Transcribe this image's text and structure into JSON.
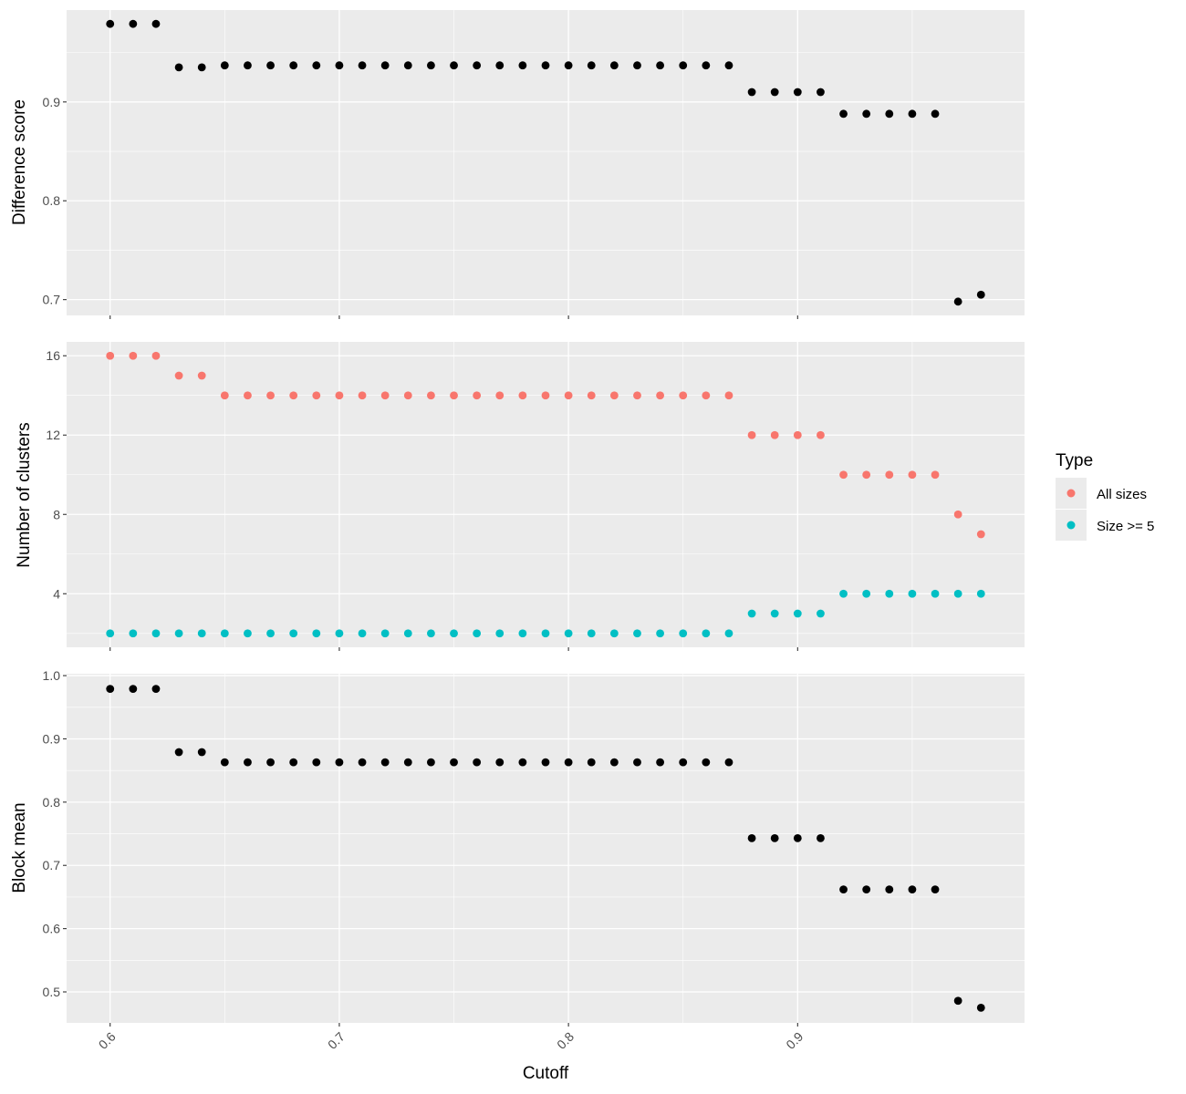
{
  "chart_data": [
    {
      "type": "scatter",
      "panel": "top",
      "xlabel": "",
      "ylabel": "Difference score",
      "xlim": [
        0.581,
        0.999
      ],
      "ylim": [
        0.684,
        0.993
      ],
      "yticks": [
        "0.7",
        "0.8",
        "0.9"
      ],
      "yticks_values": [
        0.7,
        0.8,
        0.9
      ],
      "grid": true,
      "series": [
        {
          "color": "#000000",
          "x": [
            0.6,
            0.61,
            0.62,
            0.63,
            0.64,
            0.65,
            0.66,
            0.67,
            0.68,
            0.69,
            0.7,
            0.71,
            0.72,
            0.73,
            0.74,
            0.75,
            0.76,
            0.77,
            0.78,
            0.79,
            0.8,
            0.81,
            0.82,
            0.83,
            0.84,
            0.85,
            0.86,
            0.87,
            0.88,
            0.89,
            0.9,
            0.91,
            0.92,
            0.93,
            0.94,
            0.95,
            0.96,
            0.97,
            0.98
          ],
          "y": [
            0.979,
            0.979,
            0.979,
            0.935,
            0.935,
            0.937,
            0.937,
            0.937,
            0.937,
            0.937,
            0.937,
            0.937,
            0.937,
            0.937,
            0.937,
            0.937,
            0.937,
            0.937,
            0.937,
            0.937,
            0.937,
            0.937,
            0.937,
            0.937,
            0.937,
            0.937,
            0.937,
            0.937,
            0.91,
            0.91,
            0.91,
            0.91,
            0.888,
            0.888,
            0.888,
            0.888,
            0.888,
            0.698,
            0.705
          ]
        }
      ]
    },
    {
      "type": "scatter",
      "panel": "middle",
      "xlabel": "",
      "ylabel": "Number of clusters",
      "xlim": [
        0.581,
        0.999
      ],
      "ylim": [
        1.3,
        16.7
      ],
      "yticks": [
        "4",
        "8",
        "12",
        "16"
      ],
      "yticks_values": [
        4,
        8,
        12,
        16
      ],
      "grid": true,
      "legend_position": "right",
      "legend_title": "Type",
      "series": [
        {
          "name": "All sizes",
          "color": "#F8766D",
          "x": [
            0.6,
            0.61,
            0.62,
            0.63,
            0.64,
            0.65,
            0.66,
            0.67,
            0.68,
            0.69,
            0.7,
            0.71,
            0.72,
            0.73,
            0.74,
            0.75,
            0.76,
            0.77,
            0.78,
            0.79,
            0.8,
            0.81,
            0.82,
            0.83,
            0.84,
            0.85,
            0.86,
            0.87,
            0.88,
            0.89,
            0.9,
            0.91,
            0.92,
            0.93,
            0.94,
            0.95,
            0.96,
            0.97,
            0.98
          ],
          "y": [
            16,
            16,
            16,
            15,
            15,
            14,
            14,
            14,
            14,
            14,
            14,
            14,
            14,
            14,
            14,
            14,
            14,
            14,
            14,
            14,
            14,
            14,
            14,
            14,
            14,
            14,
            14,
            14,
            12,
            12,
            12,
            12,
            10,
            10,
            10,
            10,
            10,
            8,
            7
          ]
        },
        {
          "name": "Size >= 5",
          "color": "#00BFC4",
          "x": [
            0.6,
            0.61,
            0.62,
            0.63,
            0.64,
            0.65,
            0.66,
            0.67,
            0.68,
            0.69,
            0.7,
            0.71,
            0.72,
            0.73,
            0.74,
            0.75,
            0.76,
            0.77,
            0.78,
            0.79,
            0.8,
            0.81,
            0.82,
            0.83,
            0.84,
            0.85,
            0.86,
            0.87,
            0.88,
            0.89,
            0.9,
            0.91,
            0.92,
            0.93,
            0.94,
            0.95,
            0.96,
            0.97,
            0.98
          ],
          "y": [
            2,
            2,
            2,
            2,
            2,
            2,
            2,
            2,
            2,
            2,
            2,
            2,
            2,
            2,
            2,
            2,
            2,
            2,
            2,
            2,
            2,
            2,
            2,
            2,
            2,
            2,
            2,
            2,
            3,
            3,
            3,
            3,
            4,
            4,
            4,
            4,
            4,
            4,
            4
          ]
        }
      ]
    },
    {
      "type": "scatter",
      "panel": "bottom",
      "xlabel": "Cutoff",
      "ylabel": "Block mean",
      "xlim": [
        0.581,
        0.999
      ],
      "ylim": [
        0.451,
        1.003
      ],
      "xticks": [
        "0.6",
        "0.7",
        "0.8",
        "0.9"
      ],
      "xticks_values": [
        0.6,
        0.7,
        0.8,
        0.9
      ],
      "yticks": [
        "0.5",
        "0.6",
        "0.7",
        "0.8",
        "0.9",
        "1.0"
      ],
      "yticks_values": [
        0.5,
        0.6,
        0.7,
        0.8,
        0.9,
        1.0
      ],
      "grid": true,
      "series": [
        {
          "color": "#000000",
          "x": [
            0.6,
            0.61,
            0.62,
            0.63,
            0.64,
            0.65,
            0.66,
            0.67,
            0.68,
            0.69,
            0.7,
            0.71,
            0.72,
            0.73,
            0.74,
            0.75,
            0.76,
            0.77,
            0.78,
            0.79,
            0.8,
            0.81,
            0.82,
            0.83,
            0.84,
            0.85,
            0.86,
            0.87,
            0.88,
            0.89,
            0.9,
            0.91,
            0.92,
            0.93,
            0.94,
            0.95,
            0.96,
            0.97,
            0.98
          ],
          "y": [
            0.979,
            0.979,
            0.979,
            0.879,
            0.879,
            0.863,
            0.863,
            0.863,
            0.863,
            0.863,
            0.863,
            0.863,
            0.863,
            0.863,
            0.863,
            0.863,
            0.863,
            0.863,
            0.863,
            0.863,
            0.863,
            0.863,
            0.863,
            0.863,
            0.863,
            0.863,
            0.863,
            0.863,
            0.743,
            0.743,
            0.743,
            0.743,
            0.662,
            0.662,
            0.662,
            0.662,
            0.662,
            0.486,
            0.475
          ]
        }
      ]
    }
  ]
}
